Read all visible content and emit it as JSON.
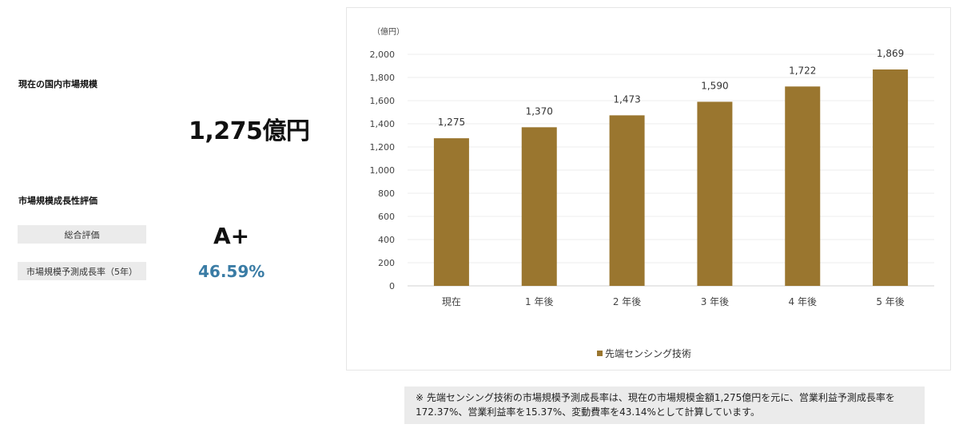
{
  "left_panel": {
    "current_market_title": "現在の国内市場規模",
    "current_market_value": "1,275億円",
    "growth_title": "市場規模成長性評価",
    "overall_label": "総合評価",
    "overall_value": "A+",
    "growth_rate_label": "市場規模予測成長率（5年）",
    "growth_rate_value": "46.59%"
  },
  "colors": {
    "bar": "#9a762f",
    "rate_text": "#3a7ca5",
    "label_bg": "#ebebeb"
  },
  "chart_data": {
    "type": "bar",
    "unit_label": "（億円）",
    "categories": [
      "現在",
      "1 年後",
      "2 年後",
      "3 年後",
      "4 年後",
      "5 年後"
    ],
    "series": [
      {
        "name": "先端センシング技術",
        "values": [
          1275,
          1370,
          1473,
          1590,
          1722,
          1869
        ]
      }
    ],
    "data_labels": [
      "1,275",
      "1,370",
      "1,473",
      "1,590",
      "1,722",
      "1,869"
    ],
    "y_ticks": [
      "0",
      "200",
      "400",
      "600",
      "800",
      "1,000",
      "1,200",
      "1,400",
      "1,600",
      "1,800",
      "2,000"
    ],
    "ylim": [
      0,
      2000
    ],
    "grid": true,
    "legend_position": "bottom"
  },
  "note": "※ 先端センシング技術の市場規模予測成長率は、現在の市場規模金額1,275億円を元に、営業利益予測成長率を172.37%、営業利益率を15.37%、変動費率を43.14%として計算しています。"
}
